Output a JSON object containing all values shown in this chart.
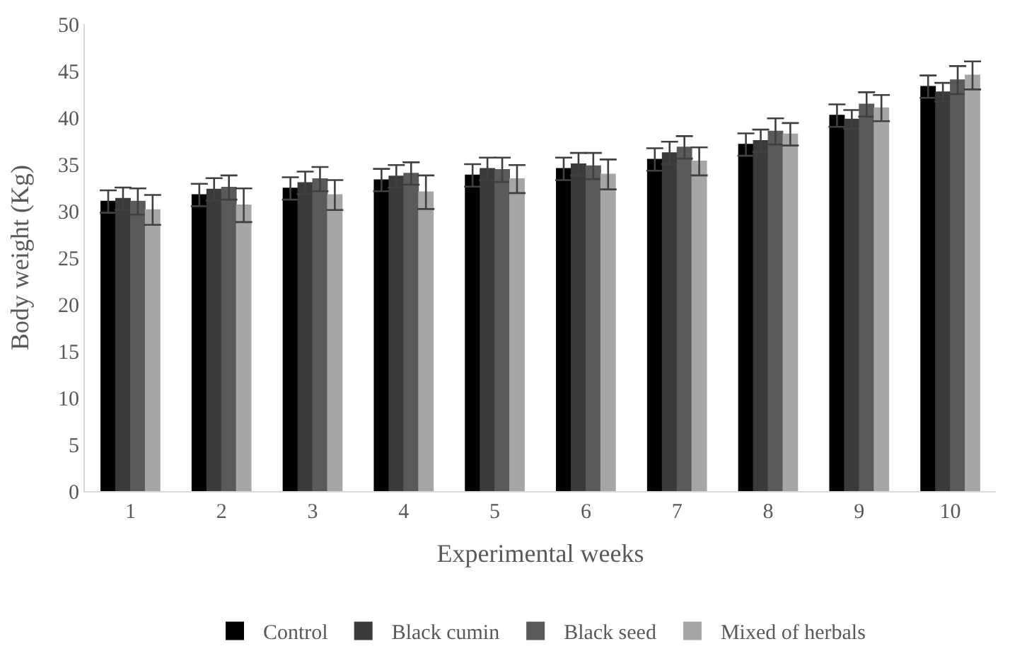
{
  "chart_data": {
    "type": "bar",
    "xlabel": "Experimental weeks",
    "ylabel": "Body weight (Kg)",
    "categories": [
      "1",
      "2",
      "3",
      "4",
      "5",
      "6",
      "7",
      "8",
      "9",
      "10"
    ],
    "series": [
      {
        "name": "Control",
        "color": "#000000",
        "values": [
          31.0,
          31.7,
          32.4,
          33.3,
          33.8,
          34.5,
          35.5,
          37.1,
          40.2,
          43.3
        ],
        "errors": [
          1.2,
          1.2,
          1.2,
          1.2,
          1.2,
          1.2,
          1.2,
          1.2,
          1.2,
          1.2
        ]
      },
      {
        "name": "Black cumin",
        "color": "#3a3a3a",
        "values": [
          31.3,
          32.3,
          33.0,
          33.7,
          34.5,
          35.0,
          36.2,
          37.5,
          39.8,
          42.7
        ],
        "errors": [
          1.2,
          1.2,
          1.2,
          1.2,
          1.2,
          1.2,
          1.2,
          1.2,
          1.0,
          1.0
        ]
      },
      {
        "name": "Black seed",
        "color": "#5a5a5a",
        "values": [
          31.0,
          32.5,
          33.4,
          34.0,
          34.4,
          34.8,
          36.8,
          38.5,
          41.4,
          44.0
        ],
        "errors": [
          1.4,
          1.3,
          1.3,
          1.2,
          1.3,
          1.4,
          1.2,
          1.4,
          1.3,
          1.5
        ]
      },
      {
        "name": "Mixed of herbals",
        "color": "#a6a6a6",
        "values": [
          30.1,
          30.6,
          31.7,
          32.0,
          33.4,
          33.9,
          35.3,
          38.2,
          41.0,
          44.5
        ],
        "errors": [
          1.6,
          1.8,
          1.6,
          1.8,
          1.5,
          1.6,
          1.5,
          1.2,
          1.4,
          1.5
        ]
      }
    ],
    "ylim": [
      0,
      50
    ],
    "yticks": [
      0,
      5,
      10,
      15,
      20,
      25,
      30,
      35,
      40,
      45,
      50
    ],
    "legend": "bottom"
  }
}
